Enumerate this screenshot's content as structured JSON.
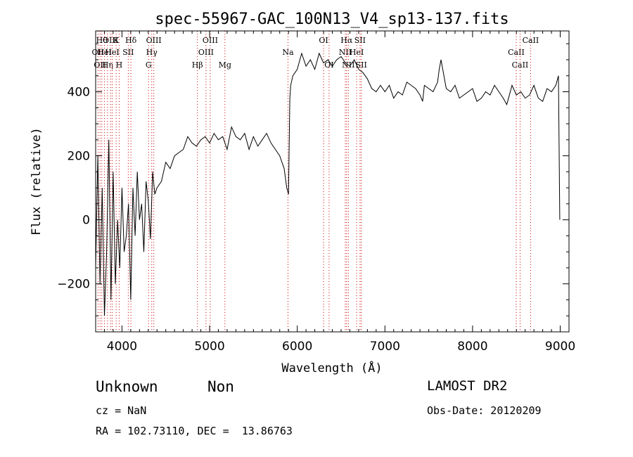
{
  "chart_data": {
    "type": "line",
    "title": "spec-55967-GAC_100N13_V4_sp13-137.fits",
    "xlabel": "Wavelength (Å)",
    "ylabel": "Flux (relative)",
    "xlim": [
      3700,
      9100
    ],
    "ylim": [
      -350,
      590
    ],
    "xticks": [
      4000,
      5000,
      6000,
      7000,
      8000,
      9000
    ],
    "yticks": [
      -200,
      0,
      200,
      400
    ],
    "grid": false,
    "spectrum": {
      "x": [
        3700,
        3725,
        3750,
        3775,
        3800,
        3825,
        3850,
        3875,
        3900,
        3925,
        3950,
        3975,
        4000,
        4025,
        4050,
        4075,
        4100,
        4125,
        4150,
        4175,
        4200,
        4225,
        4250,
        4275,
        4300,
        4325,
        4350,
        4375,
        4400,
        4450,
        4500,
        4550,
        4600,
        4650,
        4700,
        4750,
        4800,
        4850,
        4900,
        4950,
        5000,
        5050,
        5100,
        5150,
        5200,
        5250,
        5300,
        5350,
        5400,
        5450,
        5500,
        5550,
        5600,
        5650,
        5700,
        5750,
        5800,
        5850,
        5880,
        5900,
        5915,
        5925,
        5950,
        6000,
        6050,
        6100,
        6150,
        6200,
        6250,
        6300,
        6350,
        6400,
        6450,
        6500,
        6550,
        6600,
        6650,
        6700,
        6750,
        6800,
        6850,
        6900,
        6950,
        7000,
        7050,
        7100,
        7150,
        7200,
        7250,
        7300,
        7350,
        7400,
        7430,
        7450,
        7500,
        7550,
        7600,
        7620,
        7640,
        7700,
        7750,
        7800,
        7850,
        7900,
        7950,
        8000,
        8050,
        8100,
        8150,
        8200,
        8250,
        8300,
        8350,
        8390,
        8400,
        8450,
        8500,
        8550,
        8600,
        8650,
        8700,
        8750,
        8800,
        8850,
        8900,
        8950,
        8980,
        8995
      ],
      "y": [
        -150,
        200,
        -200,
        100,
        -300,
        -100,
        250,
        -250,
        150,
        -200,
        0,
        -150,
        100,
        -100,
        -50,
        50,
        -250,
        100,
        -50,
        150,
        0,
        50,
        -100,
        120,
        60,
        -60,
        150,
        80,
        100,
        120,
        180,
        160,
        200,
        210,
        220,
        260,
        240,
        230,
        250,
        260,
        240,
        270,
        250,
        260,
        220,
        290,
        260,
        250,
        270,
        220,
        260,
        230,
        250,
        270,
        240,
        220,
        200,
        160,
        100,
        80,
        380,
        420,
        450,
        470,
        520,
        480,
        500,
        470,
        520,
        490,
        500,
        480,
        500,
        510,
        490,
        480,
        500,
        470,
        460,
        440,
        410,
        400,
        420,
        400,
        420,
        380,
        400,
        390,
        430,
        420,
        410,
        390,
        370,
        420,
        410,
        400,
        430,
        470,
        500,
        410,
        400,
        420,
        380,
        390,
        400,
        410,
        370,
        380,
        400,
        390,
        420,
        400,
        380,
        360,
        370,
        420,
        390,
        400,
        380,
        390,
        420,
        380,
        370,
        410,
        400,
        420,
        450,
        0
      ]
    },
    "line_markers": [
      {
        "x": 3727,
        "label": "OII",
        "row": 1
      },
      {
        "x": 3750,
        "label": "OII",
        "row": 2
      },
      {
        "x": 3770,
        "label": "Hθ",
        "row": 0
      },
      {
        "x": 3800,
        "label": "HeI",
        "row": 1
      },
      {
        "x": 3835,
        "label": "Hη",
        "row": 2
      },
      {
        "x": 3869,
        "label": "OIII",
        "row": 0
      },
      {
        "x": 3889,
        "label": "HeI",
        "row": 1
      },
      {
        "x": 3934,
        "label": "K",
        "row": 0
      },
      {
        "x": 3968,
        "label": "H",
        "row": 2
      },
      {
        "x": 4072,
        "label": "SII",
        "row": 1
      },
      {
        "x": 4102,
        "label": "Hδ",
        "row": 0
      },
      {
        "x": 4304,
        "label": "G",
        "row": 2
      },
      {
        "x": 4340,
        "label": "Hγ",
        "row": 1
      },
      {
        "x": 4363,
        "label": "OIII",
        "row": 0
      },
      {
        "x": 4861,
        "label": "Hβ",
        "row": 2
      },
      {
        "x": 4959,
        "label": "OIII",
        "row": 1
      },
      {
        "x": 5007,
        "label": "OIII",
        "row": 0
      },
      {
        "x": 5175,
        "label": "Mg",
        "row": 2
      },
      {
        "x": 5894,
        "label": "Na",
        "row": 1
      },
      {
        "x": 6300,
        "label": "OI",
        "row": 0
      },
      {
        "x": 6363,
        "label": "OI",
        "row": 2
      },
      {
        "x": 6548,
        "label": "NII",
        "row": 1
      },
      {
        "x": 6563,
        "label": "Hα",
        "row": 0
      },
      {
        "x": 6583,
        "label": "NII",
        "row": 2
      },
      {
        "x": 6678,
        "label": "HeI",
        "row": 1
      },
      {
        "x": 6716,
        "label": "SII",
        "row": 0
      },
      {
        "x": 6731,
        "label": "SII",
        "row": 2
      },
      {
        "x": 8498,
        "label": "CaII",
        "row": 1
      },
      {
        "x": 8542,
        "label": "CaII",
        "row": 2
      },
      {
        "x": 8662,
        "label": "CaII",
        "row": 0
      }
    ],
    "marker_color": "#cc0000"
  },
  "info": {
    "obj_class": "Unknown",
    "obj_subclass": "Non",
    "survey": "LAMOST DR2",
    "cz": "cz = NaN",
    "obs_date": "Obs-Date: 20120209",
    "radec": "RA = 102.73110, DEC =  13.86763"
  }
}
